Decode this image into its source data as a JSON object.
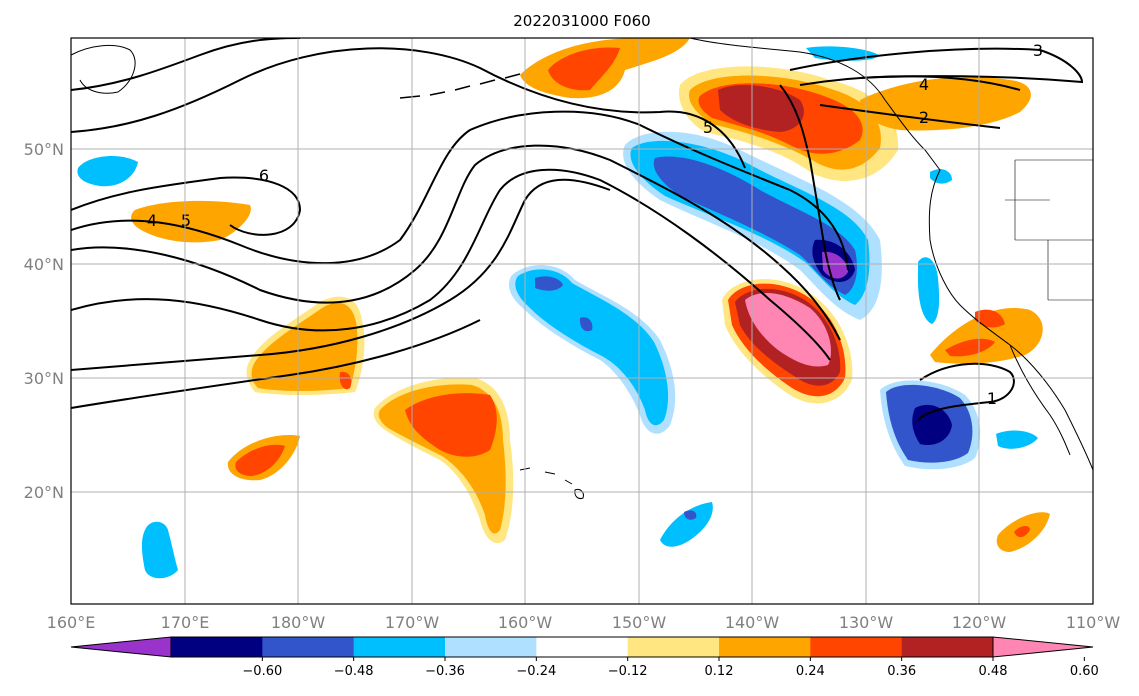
{
  "title": "2022031000 F060",
  "map": {
    "type": "filled-contour-map",
    "lon_range": [
      "160°E",
      "110°W"
    ],
    "lat_range": [
      "10°N",
      "60°N"
    ],
    "gridlines": true,
    "x_ticks": [
      "160°E",
      "170°E",
      "180°W",
      "170°W",
      "160°W",
      "150°W",
      "140°W",
      "130°W",
      "120°W",
      "110°W"
    ],
    "y_ticks": [
      "50°N",
      "40°N",
      "30°N",
      "20°N"
    ],
    "contour_line_labels": [
      "3",
      "4",
      "2",
      "5",
      "6",
      "4",
      "5",
      "1"
    ]
  },
  "colorbar": {
    "ticks": [
      "−0.60",
      "−0.48",
      "−0.36",
      "−0.24",
      "−0.12",
      "0.12",
      "0.24",
      "0.36",
      "0.48",
      "0.60"
    ],
    "colors": [
      "#9933cc",
      "#000080",
      "#3355cc",
      "#00bfff",
      "#b0e0ff",
      "#ffffff",
      "#ffe680",
      "#ffa500",
      "#ff4500",
      "#b22222",
      "#ff85b3"
    ]
  }
}
